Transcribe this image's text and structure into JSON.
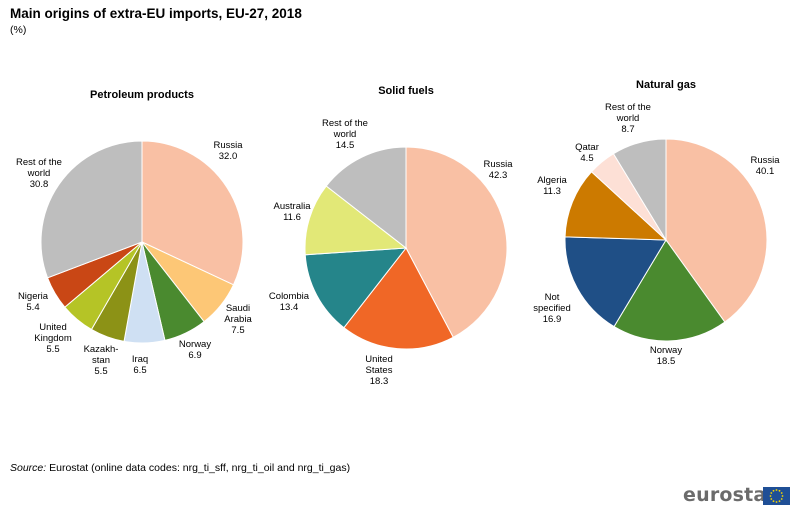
{
  "title": "Main origins of extra-EU imports, EU-27, 2018",
  "unit": "(%)",
  "source_label": "Source:",
  "source_text": "Eurostat (online data codes: nrg_ti_sff, nrg_ti_oil and nrg_ti_gas)",
  "logo_text": "eurostat",
  "chart_data": [
    {
      "type": "pie",
      "title": "Petroleum products",
      "slices": [
        {
          "label": "Russia",
          "value": 32.0,
          "color": "#f9c0a4"
        },
        {
          "label": "Saudi Arabia",
          "value": 7.5,
          "color": "#fdc776"
        },
        {
          "label": "Norway",
          "value": 6.9,
          "color": "#4a8a2f"
        },
        {
          "label": "Iraq",
          "value": 6.5,
          "color": "#cfe0f3"
        },
        {
          "label": "Kazakh-stan",
          "value": 5.5,
          "color": "#8c9216"
        },
        {
          "label": "United Kingdom",
          "value": 5.5,
          "color": "#b5c426"
        },
        {
          "label": "Nigeria",
          "value": 5.4,
          "color": "#c94715"
        },
        {
          "label": "Rest of the world",
          "value": 30.8,
          "color": "#bebebe"
        }
      ]
    },
    {
      "type": "pie",
      "title": "Solid fuels",
      "slices": [
        {
          "label": "Russia",
          "value": 42.3,
          "color": "#f9c0a4"
        },
        {
          "label": "United States",
          "value": 18.3,
          "color": "#f06726"
        },
        {
          "label": "Colombia",
          "value": 13.4,
          "color": "#25858a"
        },
        {
          "label": "Australia",
          "value": 11.6,
          "color": "#e2e877"
        },
        {
          "label": "Rest of the world",
          "value": 14.5,
          "color": "#bebebe"
        }
      ]
    },
    {
      "type": "pie",
      "title": "Natural gas",
      "slices": [
        {
          "label": "Russia",
          "value": 40.1,
          "color": "#f9c0a4"
        },
        {
          "label": "Norway",
          "value": 18.5,
          "color": "#4a8a2f"
        },
        {
          "label": "Not specified",
          "value": 16.9,
          "color": "#1f4f86"
        },
        {
          "label": "Algeria",
          "value": 11.3,
          "color": "#cc7a00"
        },
        {
          "label": "Qatar",
          "value": 4.5,
          "color": "#fde0d6"
        },
        {
          "label": "Rest of the world",
          "value": 8.7,
          "color": "#bebebe"
        }
      ]
    }
  ]
}
